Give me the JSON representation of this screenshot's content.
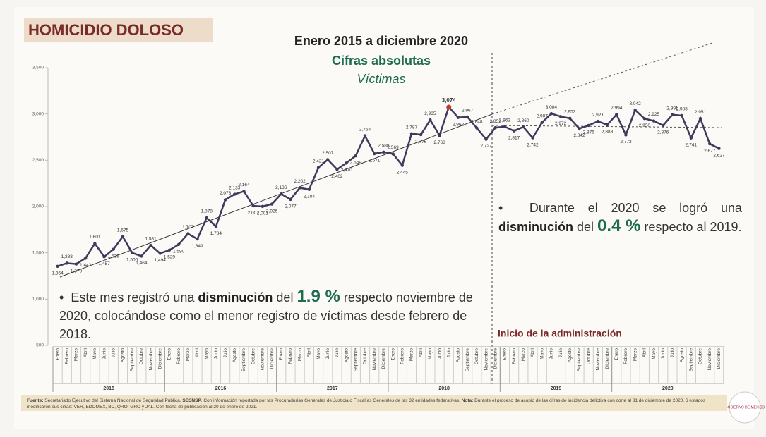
{
  "chart_data": {
    "type": "line",
    "title": "HOMICIDIO DOLOSO",
    "subtitle": "Enero 2015 a diciembre 2020",
    "subtitle2": "Cifras absolutas",
    "subtitle3": "Víctimas",
    "categories": [
      "Enero",
      "Febrero",
      "Marzo",
      "Abril",
      "Mayo",
      "Junio",
      "Julio",
      "Agosto",
      "Septiembre",
      "Octubre",
      "Noviembre",
      "Diciembre",
      "Enero",
      "Febrero",
      "Marzo",
      "Abril",
      "Mayo",
      "Junio",
      "Julio",
      "Agosto",
      "Septiembre",
      "Octubre",
      "Noviembre",
      "Diciembre",
      "Enero",
      "Febrero",
      "Marzo",
      "Abril",
      "Mayo",
      "Junio",
      "Julio",
      "Agosto",
      "Septiembre",
      "Octubre",
      "Noviembre",
      "Diciembre",
      "Enero",
      "Febrero",
      "Marzo",
      "Abril",
      "Mayo",
      "Junio",
      "Julio",
      "Agosto",
      "Septiembre",
      "Octubre",
      "Noviembre",
      "Diciembre",
      "Enero",
      "Febrero",
      "Marzo",
      "Abril",
      "Mayo",
      "Junio",
      "Julio",
      "Agosto",
      "Septiembre",
      "Octubre",
      "Noviembre",
      "Diciembre",
      "Enero",
      "Febrero",
      "Marzo",
      "Abril",
      "Mayo",
      "Junio",
      "Julio",
      "Agosto",
      "Septiembre",
      "Octubre",
      "Noviembre",
      "Diciembre"
    ],
    "years": [
      "2015",
      "2016",
      "2017",
      "2018",
      "2019",
      "2020"
    ],
    "values": [
      1354,
      1388,
      1379,
      1442,
      1601,
      1457,
      1539,
      1675,
      1500,
      1464,
      1581,
      1494,
      1529,
      1590,
      1707,
      1649,
      1878,
      1784,
      2073,
      2133,
      2164,
      2007,
      2001,
      2026,
      2136,
      2077,
      2202,
      2184,
      2421,
      2507,
      2402,
      2470,
      2548,
      2764,
      2571,
      2588,
      2569,
      2445,
      2787,
      2776,
      2935,
      2768,
      3074,
      2962,
      2967,
      2848,
      2727,
      2852,
      2863,
      2817,
      2860,
      2742,
      2907,
      3004,
      2972,
      2953,
      2842,
      2876,
      2921,
      2883,
      2994,
      2773,
      3042,
      2950,
      2925,
      2876,
      2991,
      2983,
      2741,
      2951,
      2677,
      2627
    ],
    "value_labels": [
      "1,354",
      "1,388",
      "1,379",
      "1,442",
      "1,601",
      "1,457",
      "1,539",
      "1,675",
      "1,500",
      "1,464",
      "1,581",
      "1,494",
      "1,529",
      "1,590",
      "1,707",
      "1,649",
      "1,878",
      "1,784",
      "2,073",
      "2,133",
      "2,164",
      "2,007",
      "2,001",
      "2,026",
      "2,136",
      "2,077",
      "2,202",
      "2,184",
      "2,421",
      "2,507",
      "2,402",
      "2,470",
      "2,548",
      "2,764",
      "2,571",
      "2,588",
      "2,569",
      "2,445",
      "2,787",
      "2,776",
      "2,935",
      "2,768",
      "3,074",
      "2,962",
      "2,967",
      "2,848",
      "2,727",
      "2,852",
      "2,863",
      "2,817",
      "2,860",
      "2,742",
      "2,907",
      "3,004",
      "2,972",
      "2,953",
      "2,842",
      "2,876",
      "2,921",
      "2,883",
      "2,994",
      "2,773",
      "3,042",
      "2,950",
      "2,925",
      "2,876",
      "2,991",
      "2,983",
      "2,741",
      "2,951",
      "2,677",
      "2,627"
    ],
    "color": "#3d3a5c",
    "highlight_color": "#c0392b",
    "ylim": [
      500,
      3500
    ],
    "yticks": [
      {
        "value": 500,
        "label": "500"
      },
      {
        "value": 1000,
        "label": "1,000"
      },
      {
        "value": 1500,
        "label": "1,500"
      },
      {
        "value": 2000,
        "label": "2,000"
      },
      {
        "value": 2500,
        "label": "2,500"
      },
      {
        "value": 3000,
        "label": "3,000"
      },
      {
        "value": 3500,
        "label": "3,500"
      }
    ],
    "annotation": "Inicio de la administración",
    "bullets": [
      {
        "parts": [
          "Este mes registró una ",
          "disminución",
          " del ",
          "1.9 %",
          " respecto noviembre de 2020, colocándose como el menor registro de víctimas desde febrero de 2018."
        ]
      },
      {
        "parts": [
          "Durante el 2020 se logró una ",
          "disminución",
          " del ",
          "0.4 %",
          " respecto al 2019."
        ]
      }
    ],
    "footnote": [
      "Fuente:",
      " Secretariado Ejecutivo del Sistema Nacional de Seguridad Pública, ",
      "SESNSP",
      ". Con información reportada por las Procuradurías Generales de Justicia o Fiscalías Generales de las 32 entidades federativas. ",
      "Nota:",
      " Durante el proceso de acopio de las cifras de incidencia delictiva con corte al 31 de diciembre de 2020, 6 estados modificaron sus cifras: VER, EDOMEX, BC, QRO, GRO y JAL. Con fecha de publicación al 20 de enero de 2021."
    ],
    "logo_text": "GOBIERNO DE MÉXICO"
  }
}
